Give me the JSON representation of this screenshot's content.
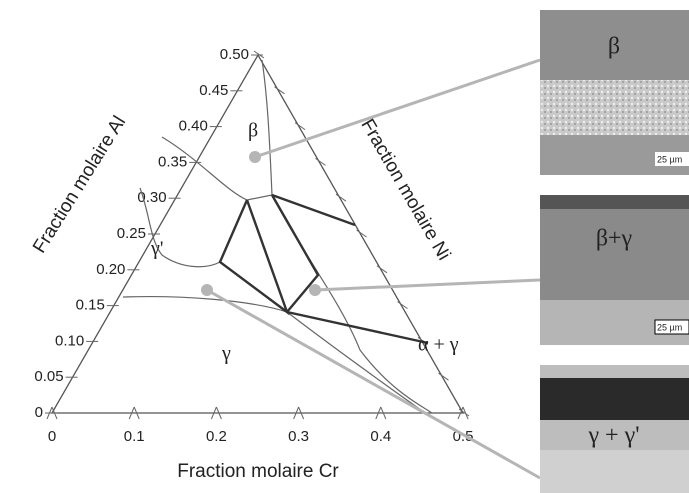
{
  "axes": {
    "al": {
      "title": "Fraction molaire Al",
      "ticks": [
        "0",
        "0.05",
        "0.10",
        "0.15",
        "0.20",
        "0.25",
        "0.30",
        "0.35",
        "0.40",
        "0.45",
        "0.50"
      ]
    },
    "cr": {
      "title": "Fraction molaire Cr",
      "ticks": [
        "0",
        "0.1",
        "0.2",
        "0.3",
        "0.4",
        "0.5"
      ]
    },
    "ni": {
      "title": "Fraction molaire Ni"
    }
  },
  "phases": [
    "β",
    "γ'",
    "γ",
    "α + γ"
  ],
  "micrographs": [
    {
      "label": "β",
      "scale": "25 µm"
    },
    {
      "label": "β+γ",
      "scale": "25 µm"
    },
    {
      "label": "γ + γ'"
    }
  ]
}
